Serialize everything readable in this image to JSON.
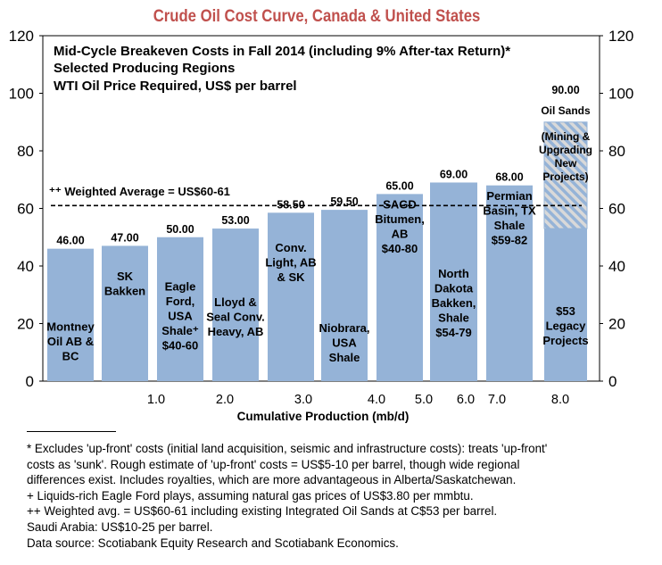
{
  "chart_data": {
    "type": "bar",
    "title": "Crude Oil Cost Curve, Canada & United States",
    "subtitle": [
      "Mid-Cycle Breakeven Costs in Fall 2014 (including 9% After-tax Return)*",
      "Selected Producing Regions",
      "WTI Oil Price Required, US$ per barrel"
    ],
    "xlabel": "Cumulative Production (mb/d)",
    "ylabel": "",
    "ylim": [
      0,
      120
    ],
    "yticks": [
      "0",
      "20",
      "40",
      "60",
      "80",
      "100",
      "120"
    ],
    "xticks": [
      "1.0",
      "2.0",
      "3.0",
      "4.0",
      "5.0",
      "6.0",
      "7.0",
      "8.0"
    ],
    "grid": false,
    "bar_color": "#95B3D7",
    "bars": [
      {
        "label": [
          "Montney",
          "Oil AB &",
          "BC"
        ],
        "value": 46.0,
        "value_label": "46.00"
      },
      {
        "label": [
          "SK",
          "Bakken"
        ],
        "value": 47.0,
        "value_label": "47.00"
      },
      {
        "label": [
          "Eagle",
          "Ford,",
          "USA",
          "Shale⁺",
          "$40-60"
        ],
        "value": 50.0,
        "value_label": "50.00"
      },
      {
        "label": [
          "Lloyd &",
          "Seal Conv.",
          "Heavy, AB"
        ],
        "value": 53.0,
        "value_label": "53.00"
      },
      {
        "label": [
          "Conv.",
          "Light, AB",
          "& SK"
        ],
        "value": 58.5,
        "value_label": "58.50"
      },
      {
        "label": [
          "Niobrara,",
          "USA",
          "Shale"
        ],
        "value": 59.5,
        "value_label": "59.50"
      },
      {
        "label": [
          "SAGD",
          "Bitumen,",
          "AB",
          "$40-80"
        ],
        "value": 65.0,
        "value_label": "65.00"
      },
      {
        "label": [
          "North",
          "Dakota",
          "Bakken,",
          "Shale",
          "$54-79"
        ],
        "value": 69.0,
        "value_label": "69.00"
      },
      {
        "label": [
          "Permian",
          "Basin, TX",
          "Shale",
          "$59-82"
        ],
        "value": 68.0,
        "value_label": "68.00"
      },
      {
        "label": [
          "$53",
          "Legacy",
          "Projects"
        ],
        "value": 90.0,
        "value_label": "90.00",
        "legacy_value": 53,
        "upper_label": [
          "Oil Sands",
          "(Mining &",
          "Upgrading",
          "New",
          "Projects)"
        ],
        "hatched": true
      }
    ],
    "reference_line": {
      "value": 61,
      "label": "⁺⁺ Weighted Average = US$60-61",
      "style": "dashed"
    }
  },
  "notes": [
    "* Excludes 'up-front' costs (initial land acquisition, seismic and infrastructure costs): treats 'up-front'",
    "costs as 'sunk'. Rough estimate of 'up-front' costs = US$5-10 per barrel, though wide regional",
    "differences exist. Includes royalties, which are more advantageous in Alberta/Saskatchewan.",
    "+ Liquids-rich Eagle Ford plays, assuming natural gas prices of US$3.80 per mmbtu.",
    "++ Weighted avg. = US$60-61 including existing Integrated Oil Sands at C$53 per barrel.",
    "Saudi Arabia: US$10-25 per barrel.",
    "Data source: Scotiabank Equity Research and Scotiabank Economics."
  ]
}
